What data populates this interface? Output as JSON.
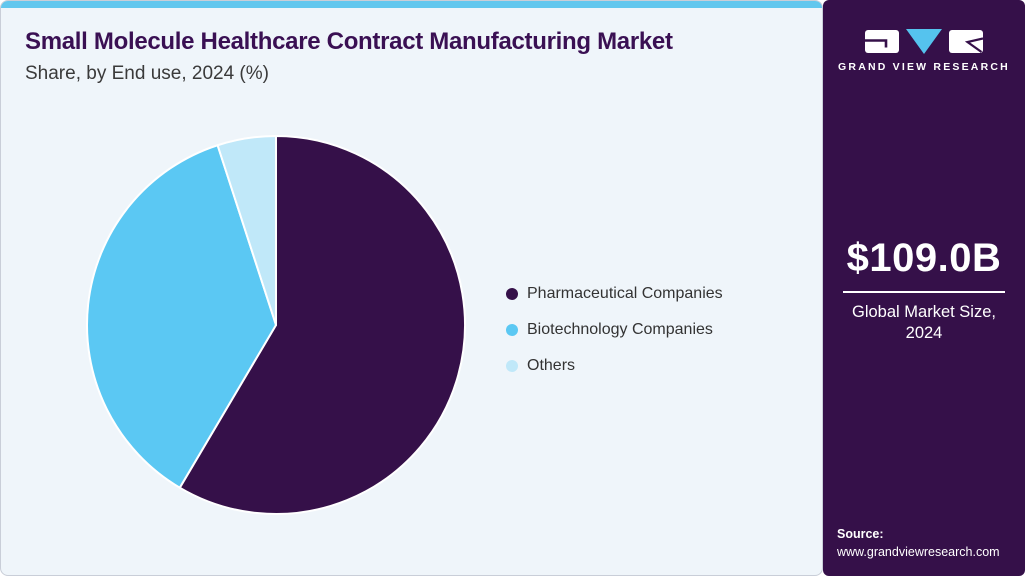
{
  "header": {
    "title": "Small Molecule Healthcare Contract Manufacturing Market",
    "subtitle": "Share, by End use, 2024 (%)"
  },
  "chart_data": {
    "type": "pie",
    "title": "Small Molecule Healthcare Contract Manufacturing Market Share, by End use, 2024 (%)",
    "unit": "%",
    "categories": [
      "Pharmaceutical Companies",
      "Biotechnology Companies",
      "Others"
    ],
    "values": [
      58.5,
      36.5,
      5.0
    ],
    "colors": [
      "#351049",
      "#5bc8f3",
      "#c0e8f9"
    ],
    "start_angle_deg": 0,
    "direction": "clockwise",
    "legend_position": "right"
  },
  "sidebar": {
    "brand_name": "GRAND VIEW RESEARCH",
    "market_size": {
      "value": "$109.0B",
      "caption_line1": "Global Market Size,",
      "caption_line2": "2024"
    },
    "source": {
      "label": "Source:",
      "url": "www.grandviewresearch.com"
    }
  },
  "colors": {
    "accent_bar": "#62c7ee",
    "card_background": "#eff5fa",
    "sidebar_background": "#351049",
    "title_text": "#3a1053",
    "subtitle_text": "#3a3a3a",
    "legend_text": "#333333",
    "sidebar_text": "#ffffff",
    "logo_triangle": "#55c3ee"
  }
}
